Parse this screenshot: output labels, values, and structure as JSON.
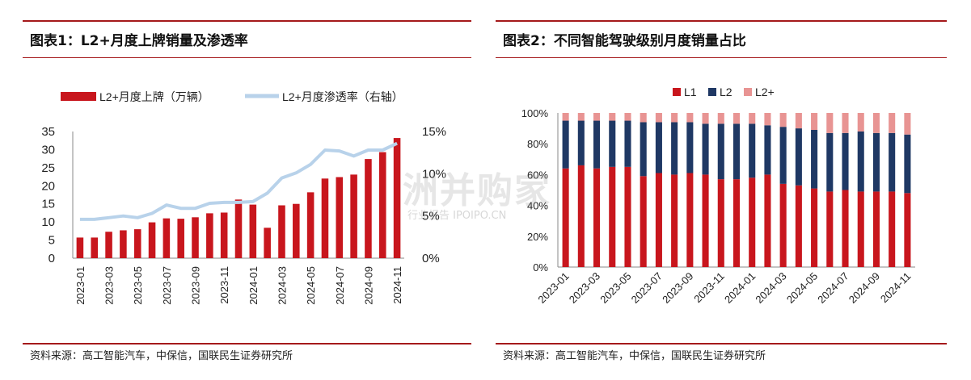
{
  "left": {
    "title": "图表1：L2+月度上牌销量及渗透率",
    "source": "资料来源：高工智能汽车，中保信，国联民生证券研究所"
  },
  "right": {
    "title": "图表2：不同智能驾驶级别月度销量占比",
    "source": "资料来源：高工智能汽车，中保信，国联民生证券研究所"
  },
  "watermark": {
    "big": "洲并购家",
    "small": "行业报告 IPOIPO.CN"
  },
  "colors": {
    "accent_rule": "#a5191b",
    "bar_red": "#c8161d",
    "line_blue": "#b8d2ea",
    "l1": "#c8161d",
    "l2": "#1f3864",
    "l2plus": "#e89493"
  },
  "chart_data": [
    {
      "type": "bar",
      "categories": [
        "2023-01",
        "2023-02",
        "2023-03",
        "2023-04",
        "2023-05",
        "2023-06",
        "2023-07",
        "2023-08",
        "2023-09",
        "2023-10",
        "2023-11",
        "2023-12",
        "2024-01",
        "2024-02",
        "2024-03",
        "2024-04",
        "2024-05",
        "2024-06",
        "2024-07",
        "2024-08",
        "2024-09",
        "2024-10",
        "2024-11"
      ],
      "x_tick_labels": [
        "2023-01",
        "2023-03",
        "2023-05",
        "2023-07",
        "2023-09",
        "2023-11",
        "2024-01",
        "2024-03",
        "2024-05",
        "2024-07",
        "2024-09",
        "2024-11"
      ],
      "series": [
        {
          "name": "L2+月度上牌（万辆）",
          "type": "bar",
          "axis": "left",
          "values": [
            5.7,
            5.7,
            7.3,
            7.7,
            8.0,
            9.9,
            11.0,
            10.9,
            11.3,
            12.4,
            12.6,
            16.2,
            14.8,
            8.4,
            14.6,
            15.0,
            18.2,
            22.0,
            22.4,
            23.1,
            27.4,
            29.3,
            33.2
          ]
        },
        {
          "name": "L2+月度渗透率（右轴）",
          "type": "line",
          "axis": "right",
          "values": [
            4.6,
            4.6,
            4.8,
            5.0,
            4.8,
            5.3,
            6.3,
            5.9,
            5.9,
            6.5,
            6.6,
            6.6,
            6.7,
            7.7,
            9.5,
            10.1,
            11.1,
            12.8,
            12.7,
            12.1,
            12.8,
            12.8,
            13.6
          ]
        }
      ],
      "ylim": [
        0,
        35
      ],
      "yticks": [
        "0",
        "5",
        "10",
        "15",
        "20",
        "25",
        "30",
        "35"
      ],
      "y2lim": [
        0,
        15
      ],
      "y2ticks": [
        "0%",
        "5%",
        "10%",
        "15%"
      ],
      "legend_position": "top"
    },
    {
      "type": "bar",
      "stacked": true,
      "categories": [
        "2023-01",
        "2023-02",
        "2023-03",
        "2023-04",
        "2023-05",
        "2023-06",
        "2023-07",
        "2023-08",
        "2023-09",
        "2023-10",
        "2023-11",
        "2023-12",
        "2024-01",
        "2024-02",
        "2024-03",
        "2024-04",
        "2024-05",
        "2024-06",
        "2024-07",
        "2024-08",
        "2024-09",
        "2024-10",
        "2024-11"
      ],
      "x_tick_labels": [
        "2023-01",
        "2023-03",
        "2023-05",
        "2023-07",
        "2023-09",
        "2023-11",
        "2024-01",
        "2024-03",
        "2024-05",
        "2024-07",
        "2024-09",
        "2024-11"
      ],
      "series": [
        {
          "name": "L1",
          "values": [
            64,
            66,
            64,
            65,
            65,
            59,
            61,
            60,
            61,
            60,
            57,
            57,
            58,
            60,
            54,
            53,
            51,
            49,
            50,
            49,
            49,
            49,
            48
          ]
        },
        {
          "name": "L2",
          "values": [
            31,
            29,
            31,
            30,
            30,
            35,
            33,
            34,
            33,
            33,
            36,
            36,
            35,
            32,
            37,
            37,
            38,
            38,
            37,
            39,
            38,
            38,
            38
          ]
        },
        {
          "name": "L2+",
          "values": [
            5,
            5,
            5,
            5,
            5,
            6,
            6,
            6,
            6,
            7,
            7,
            7,
            7,
            8,
            9,
            10,
            11,
            13,
            13,
            12,
            13,
            13,
            14
          ]
        }
      ],
      "ylim": [
        0,
        100
      ],
      "yticks": [
        "0%",
        "20%",
        "40%",
        "60%",
        "80%",
        "100%"
      ],
      "legend_position": "top"
    }
  ]
}
